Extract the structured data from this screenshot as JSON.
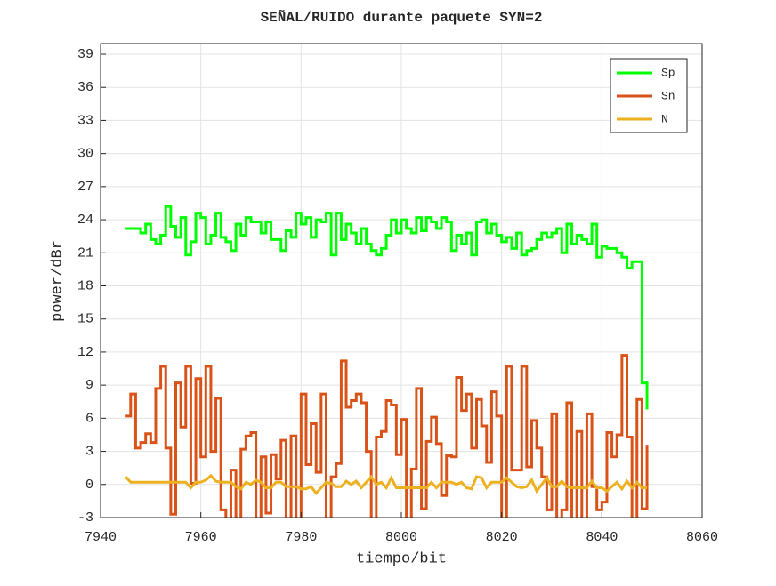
{
  "chart_data": {
    "type": "stairs",
    "title": "SEÑAL/RUIDO durante paquete SYN=2",
    "xlabel": "tiempo/bit",
    "ylabel": "power/dBr",
    "x": [
      7945,
      7946,
      7947,
      7948,
      7949,
      7950,
      7951,
      7952,
      7953,
      7954,
      7955,
      7956,
      7957,
      7958,
      7959,
      7960,
      7961,
      7962,
      7963,
      7964,
      7965,
      7966,
      7967,
      7968,
      7969,
      7970,
      7971,
      7972,
      7973,
      7974,
      7975,
      7976,
      7977,
      7978,
      7979,
      7980,
      7981,
      7982,
      7983,
      7984,
      7985,
      7986,
      7987,
      7988,
      7989,
      7990,
      7991,
      7992,
      7993,
      7994,
      7995,
      7996,
      7997,
      7998,
      7999,
      8000,
      8001,
      8002,
      8003,
      8004,
      8005,
      8006,
      8007,
      8008,
      8009,
      8010,
      8011,
      8012,
      8013,
      8014,
      8015,
      8016,
      8017,
      8018,
      8019,
      8020,
      8021,
      8022,
      8023,
      8024,
      8025,
      8026,
      8027,
      8028,
      8029,
      8030,
      8031,
      8032,
      8033,
      8034,
      8035,
      8036,
      8037,
      8038,
      8039,
      8040,
      8041,
      8042,
      8043,
      8044,
      8045,
      8046,
      8047,
      8048,
      8049
    ],
    "series": [
      {
        "name": "Sp",
        "color": "#00ff00",
        "style": "stairs",
        "values": [
          23.2,
          23.2,
          23.2,
          22.8,
          23.6,
          22.2,
          21.8,
          22.6,
          25.2,
          23.4,
          22.4,
          24.2,
          20.8,
          22.0,
          24.6,
          24.2,
          21.8,
          22.6,
          24.6,
          22.4,
          22.0,
          21.2,
          23.6,
          22.6,
          24.2,
          23.8,
          23.8,
          22.8,
          23.8,
          22.2,
          22.2,
          21.2,
          23.0,
          22.4,
          24.6,
          23.6,
          24.2,
          22.4,
          24.0,
          23.8,
          24.6,
          20.8,
          24.6,
          22.2,
          23.6,
          22.8,
          21.8,
          23.2,
          21.8,
          21.2,
          20.8,
          21.4,
          22.6,
          24.0,
          22.8,
          24.0,
          23.2,
          22.8,
          24.2,
          23.0,
          24.2,
          23.8,
          23.2,
          24.2,
          23.8,
          21.2,
          22.6,
          21.8,
          22.8,
          20.8,
          23.8,
          24.0,
          22.8,
          23.6,
          22.6,
          22.0,
          22.4,
          21.4,
          22.8,
          20.8,
          21.2,
          21.4,
          22.2,
          22.8,
          22.4,
          22.8,
          23.2,
          21.0,
          23.6,
          21.8,
          22.6,
          22.2,
          21.8,
          23.6,
          20.6,
          21.6,
          21.4,
          21.4,
          21.0,
          20.6,
          19.6,
          20.2,
          20.2,
          9.2,
          6.8
        ]
      },
      {
        "name": "Sn",
        "color": "#d95319",
        "style": "stairs",
        "values": [
          6.2,
          8.2,
          3.3,
          3.8,
          4.6,
          3.8,
          8.7,
          10.7,
          3.3,
          -2.7,
          9.2,
          5.2,
          10.7,
          0.1,
          9.6,
          2.5,
          10.7,
          3.0,
          7.8,
          -2.3,
          -4,
          1.3,
          -4,
          3.2,
          4.4,
          4.7,
          -4,
          2.5,
          -2.6,
          2.7,
          0.5,
          4.0,
          -4,
          4.4,
          -4,
          8.2,
          1.8,
          5.5,
          1.1,
          8.2,
          -4,
          0.7,
          1.9,
          11.2,
          7.0,
          7.6,
          8.2,
          7.4,
          3.0,
          -4,
          4.3,
          4.8,
          7.6,
          7.2,
          2.7,
          5.9,
          -4,
          1.4,
          8.7,
          -2.2,
          3.9,
          6.1,
          3.7,
          -1.0,
          2.6,
          2.5,
          9.7,
          6.7,
          8.2,
          3.3,
          7.7,
          5.3,
          2.0,
          8.4,
          6.2,
          -4,
          10.7,
          1.3,
          1.3,
          10.7,
          1.6,
          5.8,
          3.3,
          0.7,
          -2.3,
          6.4,
          -4,
          -2.3,
          7.4,
          -4,
          4.8,
          -4,
          6.4,
          -0.2,
          -2.3,
          -1.6,
          4.7,
          2.5,
          4.5,
          11.7,
          4.3,
          -4,
          7.7,
          -2.2,
          3.6
        ]
      },
      {
        "name": "N",
        "color": "#edb120",
        "style": "line",
        "values": [
          0.7,
          0.2,
          0.2,
          0.2,
          0.2,
          0.2,
          0.2,
          0.2,
          0.2,
          0.2,
          0.2,
          0.2,
          0.2,
          -0.3,
          0.2,
          0.2,
          0.4,
          0.8,
          0.3,
          0.2,
          0.2,
          0.2,
          -0.2,
          -0.4,
          0.2,
          0.0,
          0.4,
          0.2,
          -0.3,
          -0.3,
          0.2,
          0.2,
          -0.2,
          -0.2,
          -0.2,
          -0.4,
          -0.4,
          -0.2,
          -0.8,
          -0.3,
          0.2,
          0.1,
          -0.2,
          -0.2,
          0.3,
          0.0,
          0.3,
          -0.3,
          0.2,
          0.7,
          0.0,
          0.2,
          -0.3,
          0.6,
          -0.3,
          -0.3,
          -0.3,
          -0.3,
          -0.3,
          -0.3,
          -0.3,
          0.2,
          -0.3,
          0.2,
          0.2,
          0.2,
          0.0,
          0.2,
          -0.3,
          -0.4,
          0.7,
          0.6,
          -0.3,
          0.2,
          0.2,
          0.2,
          0.6,
          0.2,
          -0.2,
          -0.3,
          -0.2,
          0.4,
          -0.6,
          0.0,
          0.6,
          -0.2,
          -0.2,
          0.3,
          -0.2,
          -0.3,
          -0.3,
          -0.3,
          -0.3,
          0.3,
          -0.3,
          -0.3,
          -0.6,
          -0.2,
          0.2,
          -0.4,
          0.3,
          -0.3,
          0.2,
          -0.3,
          -0.3
        ]
      }
    ],
    "xlim": [
      7940,
      8060
    ],
    "xticks": [
      7940,
      7960,
      7980,
      8000,
      8020,
      8040,
      8060
    ],
    "ylim": [
      -3,
      39
    ],
    "yticks": [
      -3,
      0,
      3,
      6,
      9,
      12,
      15,
      18,
      21,
      24,
      27,
      30,
      33,
      36,
      39
    ],
    "grid": true,
    "legend": "northeast"
  }
}
